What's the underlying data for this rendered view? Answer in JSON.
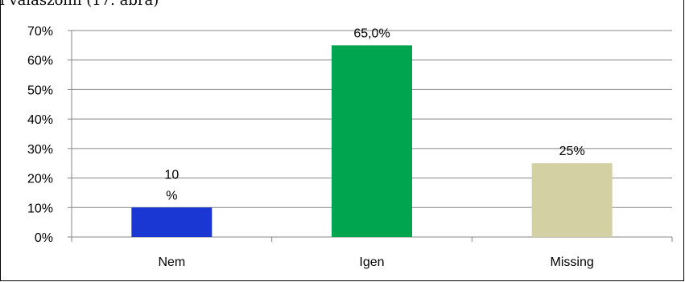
{
  "caption": "i válaszolni (17. ábra)",
  "chart_data": {
    "type": "bar",
    "categories": [
      "Nem",
      "Igen",
      "Missing"
    ],
    "values": [
      10,
      65,
      25
    ],
    "data_labels": [
      [
        "10",
        "%"
      ],
      [
        "65,0%"
      ],
      [
        "25%"
      ]
    ],
    "colors": [
      "#1a37d3",
      "#00a550",
      "#d3d1a3"
    ],
    "ylim": [
      0,
      70
    ],
    "yticks": [
      0,
      10,
      20,
      30,
      40,
      50,
      60,
      70
    ],
    "ytick_labels": [
      "0%",
      "10%",
      "20%",
      "30%",
      "40%",
      "50%",
      "60%",
      "70%"
    ],
    "grid": true,
    "legend": false,
    "title": "",
    "xlabel": "",
    "ylabel": ""
  }
}
